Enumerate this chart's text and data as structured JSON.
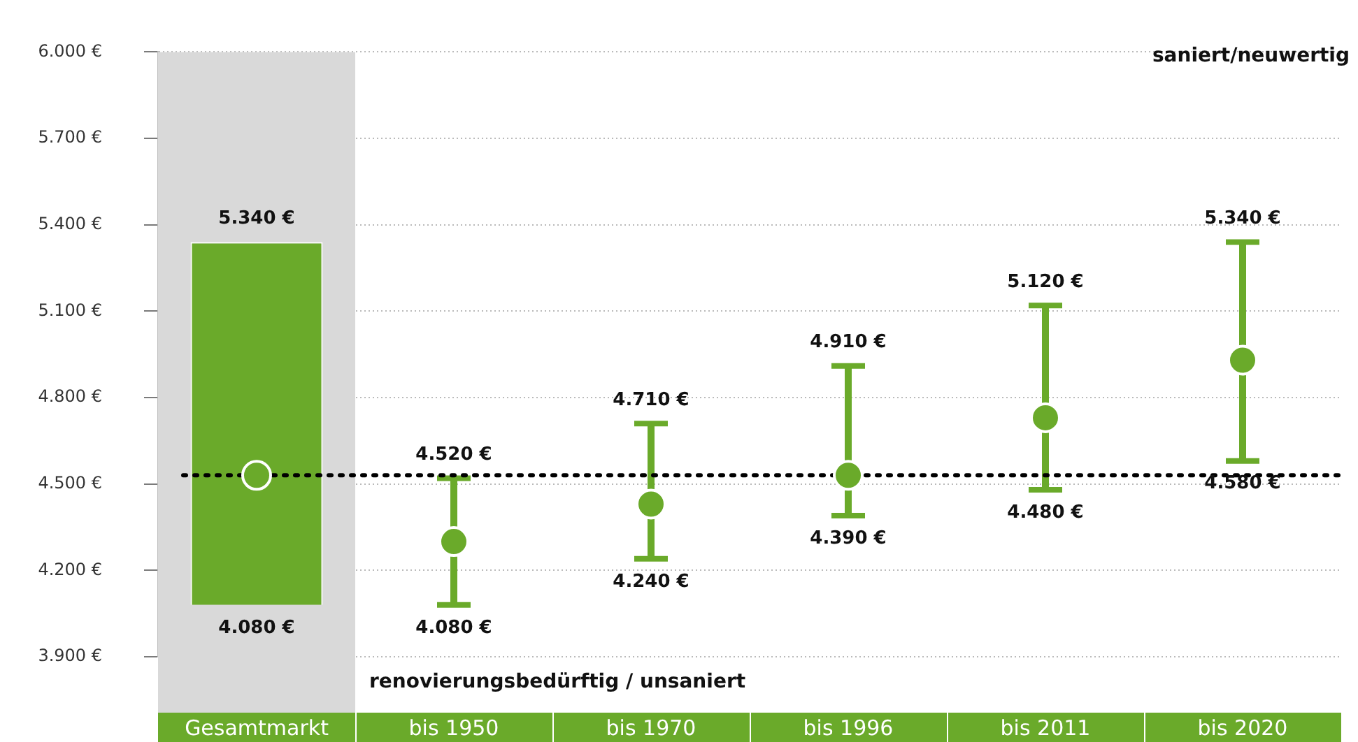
{
  "chart_data": {
    "type": "bar",
    "categories": [
      "Gesamtmarkt",
      "bis 1950",
      "bis 1970",
      "bis 1996",
      "bis 2011",
      "bis 2020"
    ],
    "series": [
      {
        "color": "#6aaa2a",
        "values": [
          1260,
          null,
          null,
          null,
          null,
          null
        ],
        "base": [
          4080,
          null,
          null,
          null,
          null,
          null
        ]
      },
      {
        "type": "scatter",
        "color": "#6aaa2a",
        "values": [
          4530,
          4300,
          4430,
          4530,
          4730,
          4930
        ],
        "errors": [
          null,
          [
            4080,
            4520
          ],
          [
            4240,
            4710
          ],
          [
            4390,
            4910
          ],
          [
            4480,
            5120
          ],
          [
            4580,
            5340
          ]
        ]
      }
    ],
    "ylim": [
      3900,
      6000
    ],
    "yticks": [
      {
        "value": 3900,
        "label": "3.900 €"
      },
      {
        "value": 4200,
        "label": "4.200 €"
      },
      {
        "value": 4500,
        "label": "4.500 €"
      },
      {
        "value": 4800,
        "label": "4.800 €"
      },
      {
        "value": 5100,
        "label": "5.100 €"
      },
      {
        "value": 5400,
        "label": "5.400 €"
      },
      {
        "value": 5700,
        "label": "5.700 €"
      },
      {
        "value": 6000,
        "label": "6.000 €"
      }
    ],
    "grid": "y",
    "legend": false,
    "marker": "circle",
    "ref_lines": [
      {
        "axis": "y",
        "value": 4530,
        "color": "#000000",
        "line_style": "dotted"
      }
    ],
    "bands": [
      {
        "axis": "x",
        "from": "Gesamtmarkt",
        "to": "Gesamtmarkt",
        "color": "#d9d9d9"
      }
    ],
    "annotations": [
      "saniert/neuwertig",
      "renovierungsbedürftig / unsaniert",
      {
        "text": "5.340 €",
        "x": "Gesamtmarkt",
        "y": 5340
      },
      {
        "text": "4.080 €",
        "x": "Gesamtmarkt",
        "y": 4080
      },
      {
        "text": "4.520 €",
        "x": "bis 1950",
        "y": 4520
      },
      {
        "text": "4.080 €",
        "x": "bis 1950",
        "y": 4080
      },
      {
        "text": "4.710 €",
        "x": "bis 1970",
        "y": 4710
      },
      {
        "text": "4.240 €",
        "x": "bis 1970",
        "y": 4240
      },
      {
        "text": "4.910 €",
        "x": "bis 1996",
        "y": 4910
      },
      {
        "text": "4.390 €",
        "x": "bis 1996",
        "y": 4390
      },
      {
        "text": "5.120 €",
        "x": "bis 2011",
        "y": 5120
      },
      {
        "text": "4.480 €",
        "x": "bis 2011",
        "y": 4480
      },
      {
        "text": "5.340 €",
        "x": "bis 2020",
        "y": 5340
      },
      {
        "text": "4.580 €",
        "x": "bis 2020",
        "y": 4580
      }
    ]
  }
}
